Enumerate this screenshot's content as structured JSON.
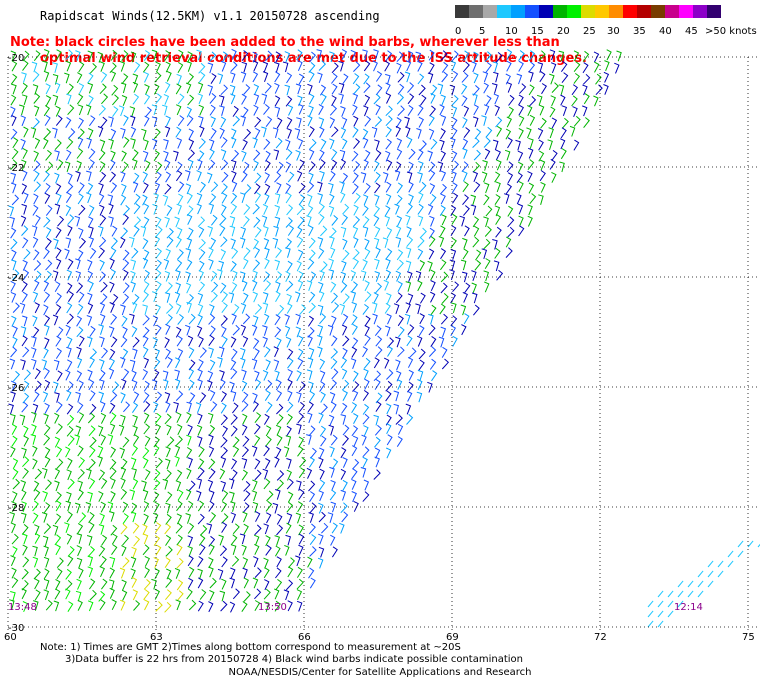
{
  "title": "Rapidscat Winds(12.5KM) v1.1 20150728 ascending",
  "note": {
    "line1": "Note: black circles have been added to the wind barbs, wherever less than",
    "line2": "optimal wind retrieval conditions are met due to the ISS attitude changes."
  },
  "color_scale": {
    "units": "knots",
    "colors": [
      "#3a3a3a",
      "#6e6e6e",
      "#a8a8a8",
      "#1ec8ff",
      "#00a0ff",
      "#1450ff",
      "#0000b4",
      "#00b400",
      "#00f000",
      "#dcdc00",
      "#ffc800",
      "#ff8c00",
      "#ff0000",
      "#b40000",
      "#783c00",
      "#c8008c",
      "#ff00ff",
      "#8c00c8",
      "#320070"
    ],
    "labels": [
      "0",
      "5",
      "10",
      "15",
      "20",
      "25",
      "30",
      "35",
      "40",
      "45",
      ">50 knots"
    ]
  },
  "map": {
    "lat_labels": [
      "-20",
      "-22",
      "-24",
      "-26",
      "-28",
      "-30"
    ],
    "lon_labels": [
      "60",
      "63",
      "66",
      "69",
      "72",
      "75"
    ],
    "time_labels": [
      "13:48",
      "13:50",
      "12:14"
    ]
  },
  "footer": {
    "line1": "Note: 1) Times are GMT 2)Times along bottom correspond to measurement at ~20S",
    "line2": "3)Data buffer is 22 hrs from 20150728 4) Black wind barbs indicate possible contamination",
    "credit": "NOAA/NESDIS/Center for Satellite Applications and Research"
  }
}
